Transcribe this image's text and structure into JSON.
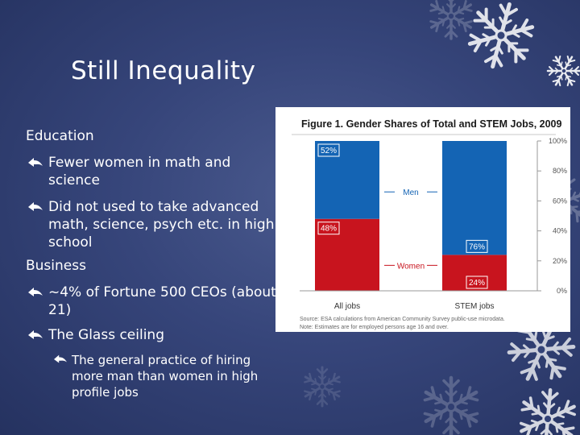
{
  "slide": {
    "title": "Still Inequality",
    "sections": [
      {
        "heading": "Education",
        "bullets": [
          "Fewer women in math and science",
          "Did not used to take advanced math, science, psych etc. in high school"
        ]
      },
      {
        "heading": "Business",
        "bullets": [
          "~4% of Fortune 500 CEOs (about 21)",
          "The Glass ceiling"
        ],
        "sub_bullets": [
          "The general practice of hiring more man than women in high profile jobs"
        ]
      }
    ]
  },
  "colors": {
    "men": "#1464b4",
    "women": "#c8141e",
    "background": "#36457a"
  },
  "chart_data": {
    "type": "bar",
    "stacked": true,
    "title": "Figure 1. Gender Shares of Total and STEM Jobs, 2009",
    "categories": [
      "All jobs",
      "STEM jobs"
    ],
    "series": [
      {
        "name": "Women",
        "values": [
          48,
          24
        ],
        "labels": [
          "48%",
          "24%"
        ]
      },
      {
        "name": "Men",
        "values": [
          52,
          76
        ],
        "labels": [
          "52%",
          "76%"
        ]
      }
    ],
    "y_ticks": [
      "0%",
      "20%",
      "40%",
      "60%",
      "80%",
      "100%"
    ],
    "ylim": [
      0,
      100
    ],
    "source_lines": [
      "Source: ESA calculations from American Community Survey public-use microdata.",
      "Note: Estimates are for employed persons age 16 and over."
    ]
  }
}
